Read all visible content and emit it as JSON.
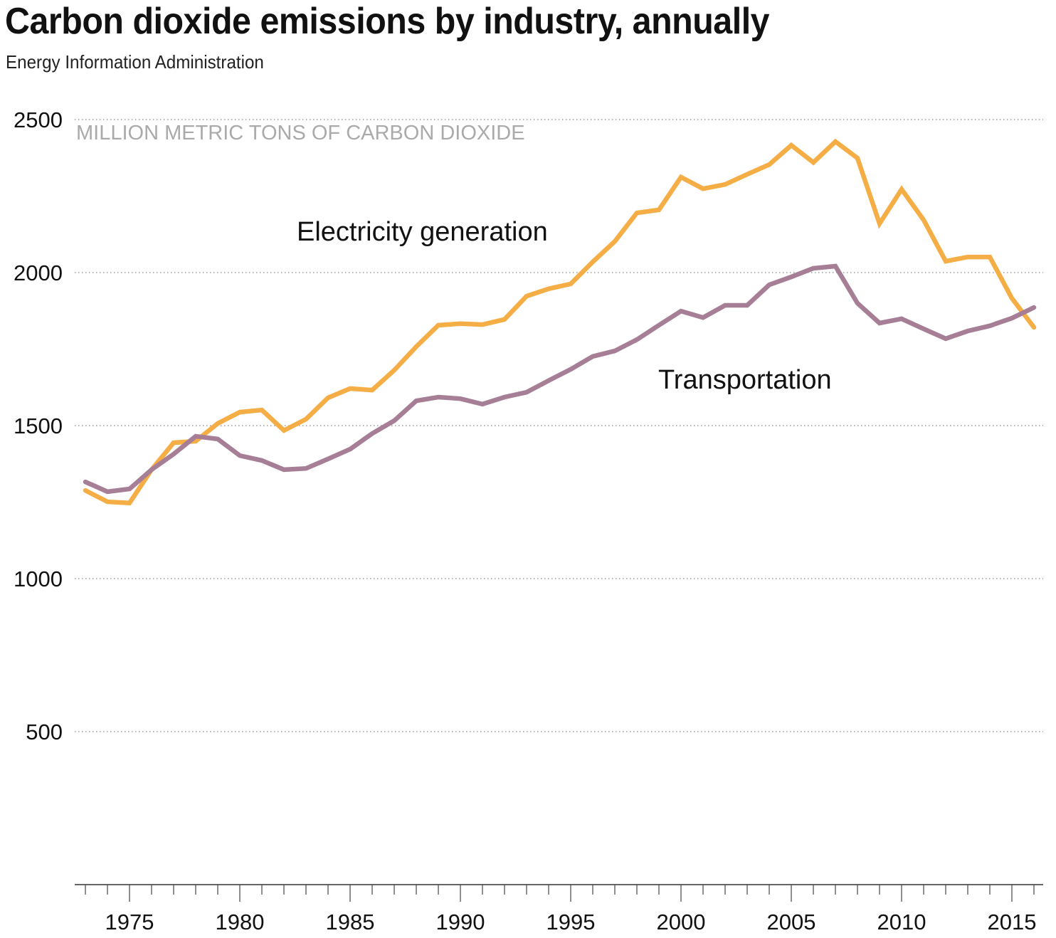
{
  "header": {
    "title": "Carbon dioxide emissions by industry, annually",
    "subtitle": "Energy Information Administration"
  },
  "chart_data": {
    "type": "line",
    "title": "Carbon dioxide emissions by industry, annually",
    "subtitle": "Energy Information Administration",
    "xlabel": "",
    "ylabel": "MILLION METRIC TONS OF CARBON DIOXIDE",
    "xlim": [
      1973,
      2016
    ],
    "ylim": [
      0,
      2500
    ],
    "grid": true,
    "legend": "inline-labels",
    "yticks": [
      500,
      1000,
      1500,
      2000,
      2500
    ],
    "xticks": [
      1975,
      1980,
      1985,
      1990,
      1995,
      2000,
      2005,
      2010,
      2015
    ],
    "x": [
      1973,
      1974,
      1975,
      1976,
      1977,
      1978,
      1979,
      1980,
      1981,
      1982,
      1983,
      1984,
      1985,
      1986,
      1987,
      1988,
      1989,
      1990,
      1991,
      1992,
      1993,
      1994,
      1995,
      1996,
      1997,
      1998,
      1999,
      2000,
      2001,
      2002,
      2003,
      2004,
      2005,
      2006,
      2007,
      2008,
      2009,
      2010,
      2011,
      2012,
      2013,
      2014,
      2015,
      2016
    ],
    "series": [
      {
        "name": "Electricity generation",
        "color": "#F5AD45",
        "values": [
          1288,
          1251,
          1247,
          1356,
          1444,
          1449,
          1507,
          1544,
          1551,
          1484,
          1521,
          1591,
          1621,
          1616,
          1681,
          1758,
          1828,
          1833,
          1830,
          1847,
          1923,
          1947,
          1963,
          2035,
          2102,
          2195,
          2205,
          2312,
          2274,
          2288,
          2321,
          2353,
          2416,
          2360,
          2428,
          2374,
          2160,
          2272,
          2172,
          2037,
          2051,
          2051,
          1916,
          1821
        ]
      },
      {
        "name": "Transportation",
        "color": "#A67E96",
        "values": [
          1316,
          1284,
          1293,
          1356,
          1407,
          1465,
          1456,
          1402,
          1386,
          1356,
          1360,
          1391,
          1423,
          1474,
          1516,
          1581,
          1593,
          1588,
          1570,
          1593,
          1609,
          1647,
          1684,
          1726,
          1744,
          1781,
          1828,
          1874,
          1853,
          1893,
          1893,
          1960,
          1986,
          2014,
          2021,
          1900,
          1835,
          1849,
          1816,
          1784,
          1809,
          1826,
          1851,
          1886
        ]
      }
    ]
  }
}
